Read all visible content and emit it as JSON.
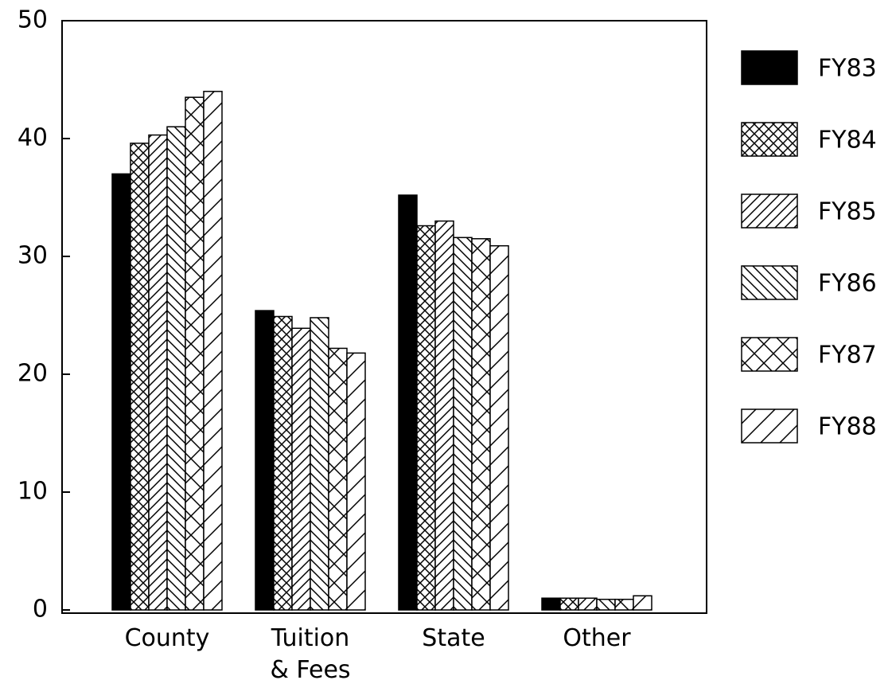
{
  "chart_data": {
    "type": "bar",
    "categories": [
      "County",
      "Tuition & Fees",
      "State",
      "Other"
    ],
    "series": [
      {
        "name": "FY83",
        "color": "#000000",
        "hatch": "solid",
        "values": [
          37,
          25.4,
          35.2,
          1
        ]
      },
      {
        "name": "FY84",
        "color": "#000000",
        "hatch": "cross",
        "values": [
          39.6,
          24.9,
          32.6,
          1
        ]
      },
      {
        "name": "FY85",
        "color": "#000000",
        "hatch": "forward",
        "values": [
          40.3,
          23.9,
          33,
          1
        ]
      },
      {
        "name": "FY86",
        "color": "#000000",
        "hatch": "back",
        "values": [
          41,
          24.8,
          31.6,
          0.9
        ]
      },
      {
        "name": "FY87",
        "color": "#000000",
        "hatch": "cross-wide",
        "values": [
          43.5,
          22.2,
          31.5,
          0.9
        ]
      },
      {
        "name": "FY88",
        "color": "#000000",
        "hatch": "forward-wide",
        "values": [
          44,
          21.8,
          30.9,
          1.2
        ]
      }
    ],
    "ylim": [
      0,
      50
    ],
    "yticks": [
      0,
      10,
      20,
      30,
      40,
      50
    ],
    "legend": "right"
  }
}
